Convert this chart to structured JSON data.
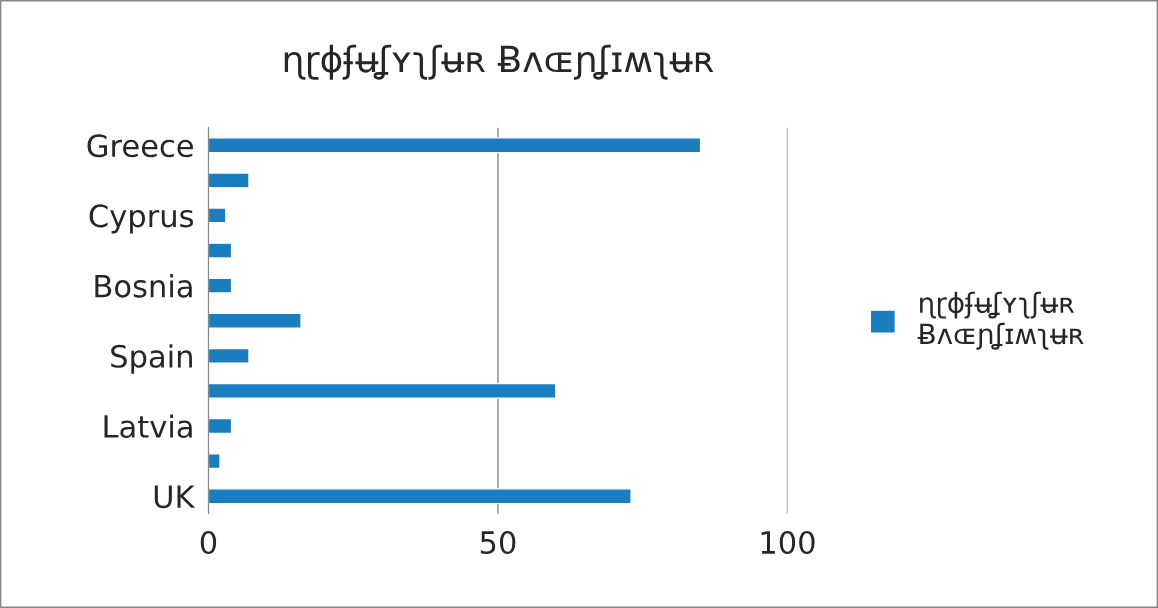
{
  "chart_data": {
    "type": "bar",
    "orientation": "horizontal",
    "title": "ɳɽɸʄʉʆʏʅʃʉʀ Ƀʌɶɲʆɪʍʅʉʀ",
    "categories": [
      "Greece",
      null,
      "Cyprus",
      null,
      "Bosnia",
      null,
      "Spain",
      null,
      "Latvia",
      null,
      "UK"
    ],
    "series": [
      {
        "name": "ɳɽɸʄʉʆʏʅʃʉʀ Ƀʌɶɲʆɪʍʅʉʀ",
        "color": "#1a7dc0",
        "values": [
          85,
          7,
          3,
          4,
          4,
          16,
          7,
          60,
          4,
          2,
          73
        ]
      }
    ],
    "xlim": [
      0,
      100
    ],
    "xticks": [
      0,
      50,
      100
    ],
    "grid": "x",
    "legend": "right"
  }
}
